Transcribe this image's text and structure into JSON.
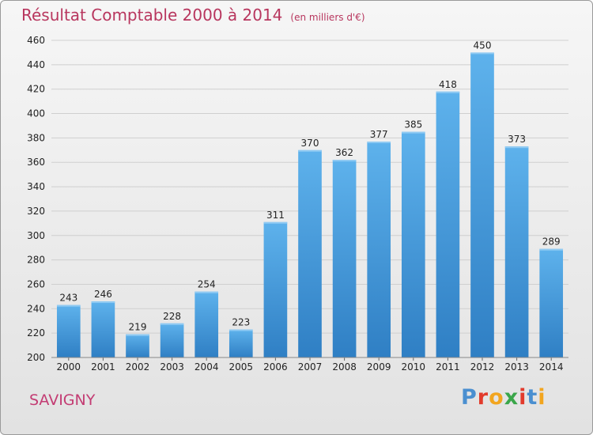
{
  "header": {
    "title": "Résultat Comptable 2000 à 2014",
    "subtitle": "(en milliers d'€)"
  },
  "footer": {
    "place": "SAVIGNY",
    "logo": "Proxiti",
    "logo_colors": [
      "#4a8fd0",
      "#e23b2c",
      "#f2a51f",
      "#3aa64a",
      "#e23b2c",
      "#4a8fd0",
      "#f2a51f"
    ]
  },
  "chart_data": {
    "type": "bar",
    "title": "Résultat Comptable 2000 à 2014",
    "subtitle": "(en milliers d'€)",
    "categories": [
      "2000",
      "2001",
      "2002",
      "2003",
      "2004",
      "2005",
      "2006",
      "2007",
      "2008",
      "2009",
      "2010",
      "2011",
      "2012",
      "2013",
      "2014"
    ],
    "values": [
      243,
      246,
      219,
      228,
      254,
      223,
      311,
      370,
      362,
      377,
      385,
      418,
      450,
      373,
      289
    ],
    "ylim": [
      200,
      460
    ],
    "yticks": [
      200,
      220,
      240,
      260,
      280,
      300,
      320,
      340,
      360,
      380,
      400,
      420,
      440,
      460
    ],
    "grid": true,
    "bar_color": "#4a9fe0",
    "data_labels": true
  }
}
